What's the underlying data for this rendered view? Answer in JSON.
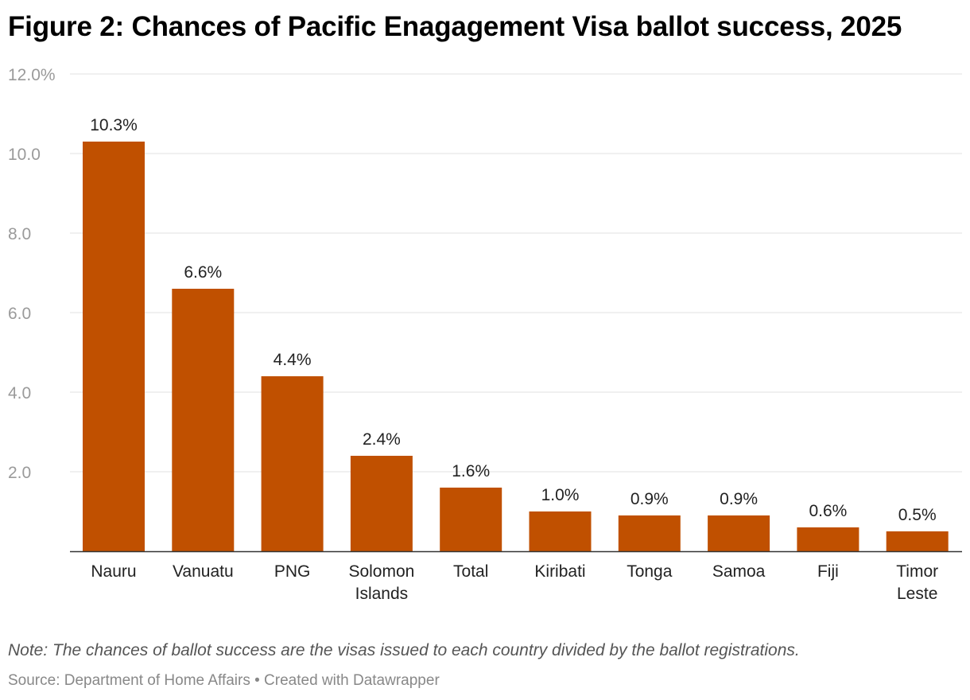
{
  "title": "Figure 2: Chances of Pacific Enagagement Visa ballot success, 2025",
  "note": "Note: The chances of ballot success are the visas issued to each country divided by the ballot registrations.",
  "source": "Source: Department of Home Affairs • Created with Datawrapper",
  "colors": {
    "bar": "#c05000",
    "grid": "#e0e0e0",
    "axis": "#333333"
  },
  "chart_data": {
    "type": "bar",
    "title": "Figure 2: Chances of Pacific Enagagement Visa ballot success, 2025",
    "xlabel": "",
    "ylabel": "",
    "ylim": [
      0,
      12
    ],
    "grid": true,
    "categories": [
      [
        "Nauru"
      ],
      [
        "Vanuatu"
      ],
      [
        "PNG"
      ],
      [
        "Solomon",
        "Islands"
      ],
      [
        "Total"
      ],
      [
        "Kiribati"
      ],
      [
        "Tonga"
      ],
      [
        "Samoa"
      ],
      [
        "Fiji"
      ],
      [
        "Timor",
        "Leste"
      ]
    ],
    "values": [
      10.3,
      6.6,
      4.4,
      2.4,
      1.6,
      1.0,
      0.9,
      0.9,
      0.6,
      0.5
    ],
    "value_labels": [
      "10.3%",
      "6.6%",
      "4.4%",
      "2.4%",
      "1.6%",
      "1.0%",
      "0.9%",
      "0.9%",
      "0.6%",
      "0.5%"
    ],
    "y_ticks": [
      {
        "value": 2,
        "label": "2.0"
      },
      {
        "value": 4,
        "label": "4.0"
      },
      {
        "value": 6,
        "label": "6.0"
      },
      {
        "value": 8,
        "label": "8.0"
      },
      {
        "value": 10,
        "label": "10.0"
      },
      {
        "value": 12,
        "label": "12.0%"
      }
    ]
  }
}
